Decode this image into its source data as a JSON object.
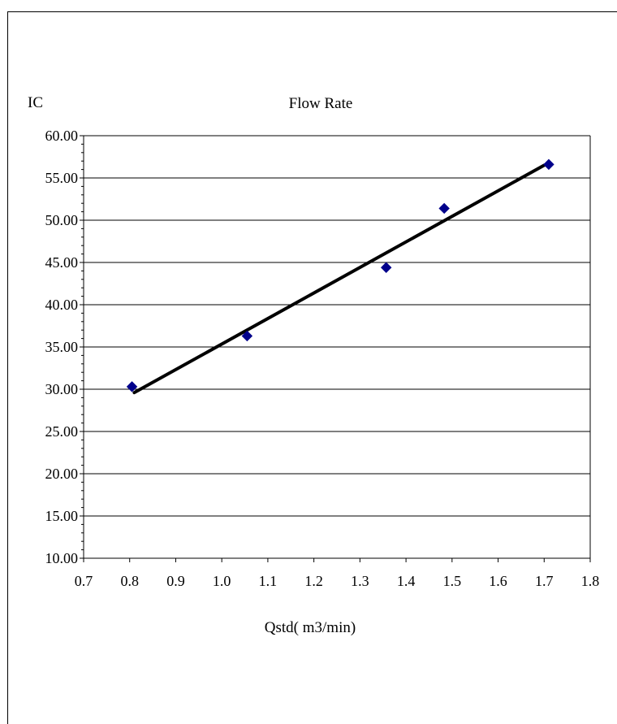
{
  "chart_data": {
    "type": "scatter",
    "title": "Flow Rate",
    "ylabel": "IC",
    "xlabel": "Qstd( m3/min)",
    "xlim": [
      0.7,
      1.8
    ],
    "ylim": [
      10.0,
      60.0
    ],
    "x_ticks": [
      "0.7",
      "0.8",
      "0.9",
      "1.0",
      "1.1",
      "1.2",
      "1.3",
      "1.4",
      "1.5",
      "1.6",
      "1.7",
      "1.8"
    ],
    "y_ticks": [
      "10.00",
      "15.00",
      "20.00",
      "25.00",
      "30.00",
      "35.00",
      "40.00",
      "45.00",
      "50.00",
      "55.00",
      "60.00"
    ],
    "grid": "horizontal",
    "series": [
      {
        "points": [
          {
            "x": 0.805,
            "y": 30.3
          },
          {
            "x": 1.055,
            "y": 36.3
          },
          {
            "x": 1.357,
            "y": 44.4
          },
          {
            "x": 1.483,
            "y": 51.4
          },
          {
            "x": 1.71,
            "y": 56.6
          }
        ],
        "color": "#00008B",
        "marker": "diamond"
      }
    ],
    "trendline": {
      "type": "linear",
      "from": {
        "x": 0.81,
        "y": 29.6
      },
      "to": {
        "x": 1.7,
        "y": 56.5
      },
      "color": "#000000"
    }
  }
}
